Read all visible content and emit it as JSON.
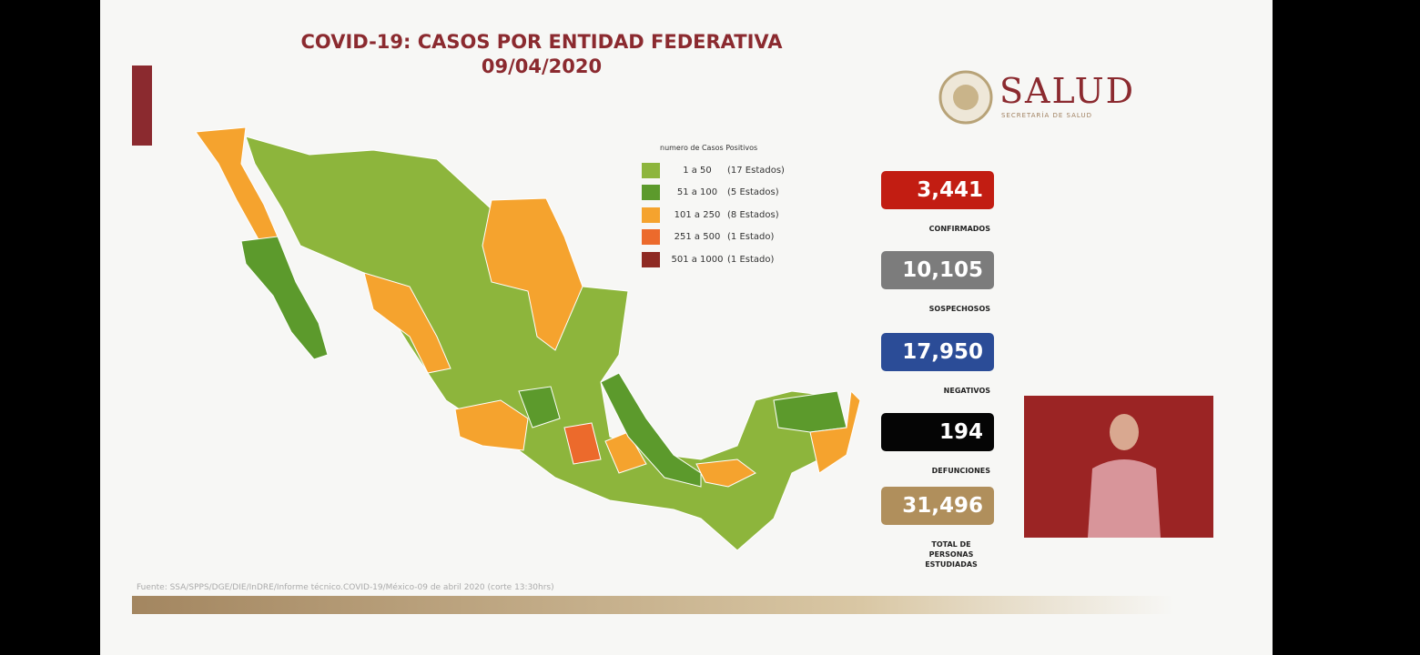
{
  "slide": {
    "title": "COVID-19: CASOS POR ENTIDAD FEDERATIVA",
    "date": "09/04/2020",
    "logo": {
      "name": "SALUD",
      "subtitle": "SECRETARÍA DE SALUD"
    },
    "legend": {
      "title": "numero de Casos Positivos",
      "items": [
        {
          "range": "1 a 50",
          "count": "(17 Estados)",
          "color": "#8db53c"
        },
        {
          "range": "51 a 100",
          "count": "(5 Estados)",
          "color": "#5c9a2c"
        },
        {
          "range": "101 a 250",
          "count": "(8 Estados)",
          "color": "#f5a32e"
        },
        {
          "range": "251 a 500",
          "count": "(1 Estado)",
          "color": "#ec6a2c"
        },
        {
          "range": "501 a 1000",
          "count": "(1 Estado)",
          "color": "#8e2a23"
        }
      ]
    },
    "stats": [
      {
        "value": "3,441",
        "label": "CONFIRMADOS",
        "color": "#c21d12"
      },
      {
        "value": "10,105",
        "label": "SOSPECHOSOS",
        "color": "#7c7c7c"
      },
      {
        "value": "17,950",
        "label": "NEGATIVOS",
        "color": "#2b4c97"
      },
      {
        "value": "194",
        "label": "DEFUNCIONES",
        "color": "#050505"
      },
      {
        "value": "31,496",
        "label": "TOTAL DE PERSONAS ESTUDIADAS",
        "color": "#b08f5c"
      }
    ],
    "source": "Fuente: SSA/SPPS/DGE/DIE/InDRE/Informe técnico.COVID-19/México-09 de abril 2020 (corte 13:30hrs)"
  }
}
